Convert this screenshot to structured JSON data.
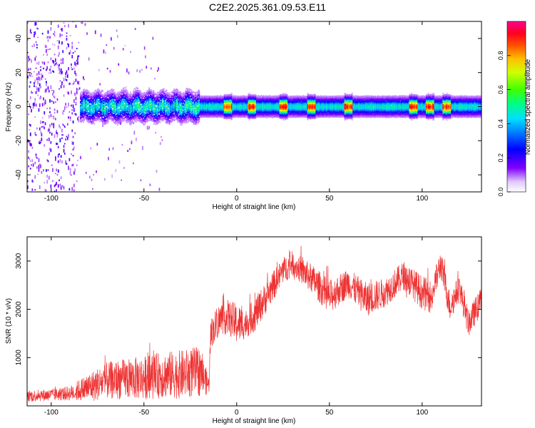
{
  "title": "C2E2.2025.361.09.53.E11",
  "chart_data": [
    {
      "type": "heatmap",
      "xlabel": "Height of straight line (km)",
      "ylabel": "Frequency (Hz)",
      "xlim": [
        -113,
        132
      ],
      "ylim": [
        -50,
        50
      ],
      "x_ticks": [
        -100,
        -50,
        0,
        50,
        100
      ],
      "x_tick_labels": [
        "-100",
        "-50",
        "0",
        "50",
        "100"
      ],
      "y_ticks": [
        -40,
        -20,
        0,
        20,
        40
      ],
      "y_tick_labels": [
        "-40",
        "-20",
        "0",
        "20",
        "40"
      ],
      "colorbar": {
        "label": "Normalized spectral amplitude",
        "range": [
          0,
          1
        ],
        "ticks": [
          0.0,
          0.2,
          0.4,
          0.6,
          0.8
        ],
        "tick_labels": [
          "0.0",
          "0.2",
          "0.4",
          "0.6",
          "0.8"
        ],
        "colormap": [
          "#ffffff",
          "#8000ff",
          "#0000ff",
          "#00c8ff",
          "#00ff80",
          "#80ff00",
          "#ffff00",
          "#ff8000",
          "#ff0000",
          "#ff0080"
        ]
      },
      "features": {
        "noise_region_x": [
          -113,
          -85
        ],
        "band_center_hz": 0,
        "band_halfwidth_hz": 5,
        "hotspots_x": [
          -5,
          8,
          25,
          40,
          60,
          95,
          104,
          113
        ]
      }
    },
    {
      "type": "line",
      "xlabel": "Height of straight line (km)",
      "ylabel": "SNR (10 * v/v)",
      "xlim": [
        -113,
        132
      ],
      "ylim": [
        0,
        3500
      ],
      "x_ticks": [
        -100,
        -50,
        0,
        50,
        100
      ],
      "x_tick_labels": [
        "-100",
        "-50",
        "0",
        "50",
        "100"
      ],
      "y_ticks": [
        1000,
        2000,
        3000
      ],
      "y_tick_labels": [
        "1000",
        "2000",
        "3000"
      ],
      "series": [
        {
          "name": "SNR",
          "color": "#ee3333",
          "x": [
            -113,
            -100,
            -90,
            -80,
            -70,
            -60,
            -50,
            -40,
            -30,
            -20,
            -15,
            -14,
            -10,
            -5,
            0,
            5,
            10,
            20,
            25,
            30,
            40,
            50,
            60,
            70,
            80,
            90,
            100,
            105,
            110,
            115,
            120,
            125,
            132
          ],
          "y": [
            200,
            230,
            260,
            380,
            520,
            560,
            580,
            640,
            650,
            720,
            420,
            1500,
            1750,
            1850,
            1700,
            1700,
            1900,
            2500,
            2800,
            2950,
            2650,
            2250,
            2550,
            2200,
            2350,
            2700,
            2350,
            2250,
            2950,
            2050,
            2450,
            1700,
            2200
          ],
          "noise": [
            120,
            120,
            150,
            300,
            380,
            420,
            450,
            480,
            500,
            520,
            180,
            300,
            350,
            350,
            420,
            300,
            350,
            300,
            280,
            250,
            300,
            350,
            300,
            350,
            300,
            300,
            350,
            350,
            300,
            300,
            280,
            280,
            280
          ]
        }
      ]
    }
  ]
}
